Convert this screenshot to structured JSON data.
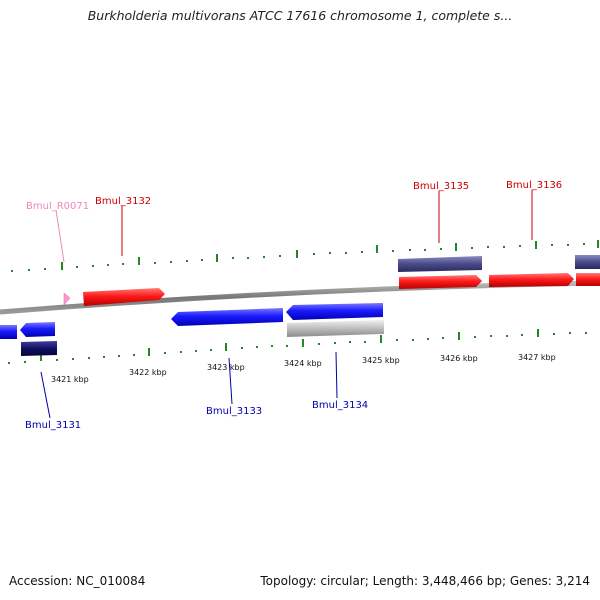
{
  "title": "Burkholderia multivorans ATCC 17616 chromosome 1, complete s...",
  "accession": "Accession: NC_010084",
  "summary": "Topology: circular; Length: 3,448,466 bp; Genes: 3,214",
  "colors": {
    "forward": "#ff1a1a",
    "reverse": "#1a1aff",
    "rna": "#ff88cc",
    "label_forward": "#cc0000",
    "label_reverse": "#0000aa",
    "label_rna": "#ee88bb",
    "navy": "#4a4a8a",
    "dark_navy": "#101060",
    "pseudo": "#bbbbbb",
    "tick": "#228822",
    "backbone": "#888888"
  },
  "ticks": [
    "3421 kbp",
    "3422 kbp",
    "3423 kbp",
    "3424 kbp",
    "3425 kbp",
    "3426 kbp",
    "3427 kbp"
  ],
  "gene_labels": {
    "g3131": "Bmul_3131",
    "g3132": "Bmul_3132",
    "g3133": "Bmul_3133",
    "g3134": "Bmul_3134",
    "g3135": "Bmul_3135",
    "g3136": "Bmul_3136",
    "r0071": "Bmul_R0071"
  }
}
